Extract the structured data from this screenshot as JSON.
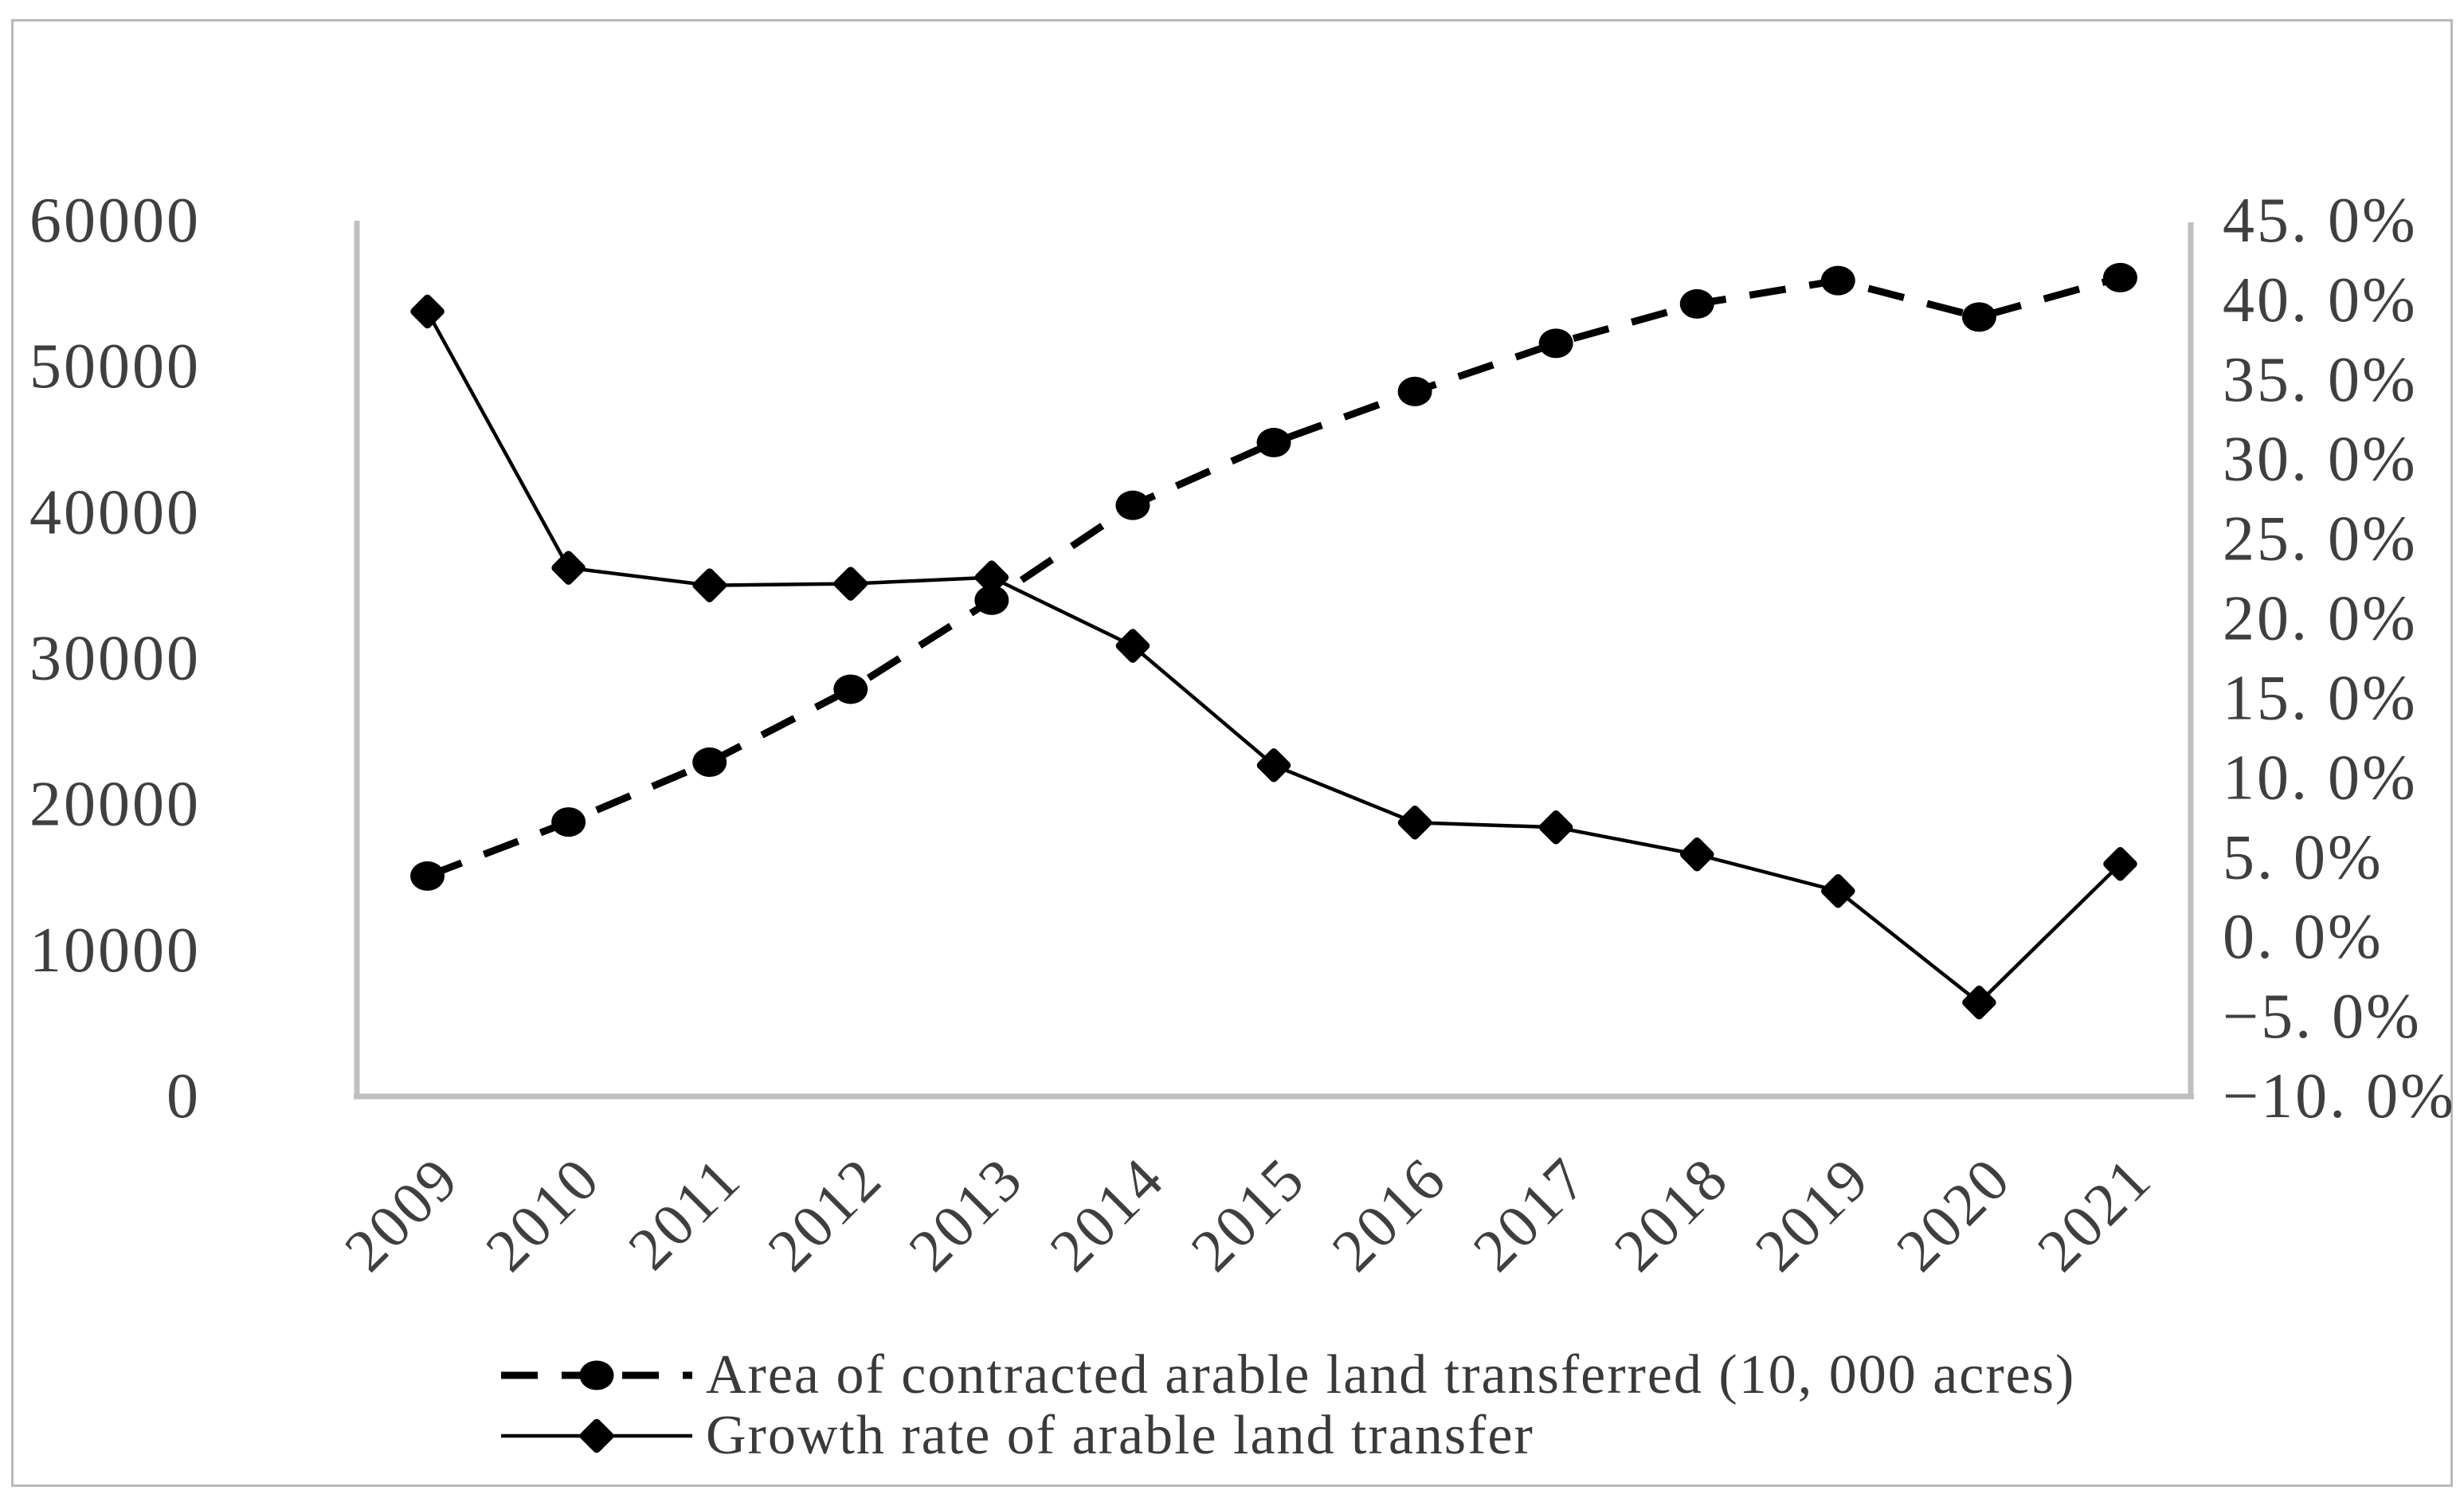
{
  "figure": {
    "background_color": "#ffffff",
    "border_color": "#b9b9b9",
    "series_color": "#000000",
    "axis_line_color": "#bfbfbf",
    "text_color": "#3f3f3f"
  },
  "chart_data": {
    "type": "line",
    "title": "",
    "grid": false,
    "legend_position": "bottom",
    "categories": [
      "2009",
      "2010",
      "2011",
      "2012",
      "2013",
      "2014",
      "2015",
      "2016",
      "2017",
      "2018",
      "2019",
      "2020",
      "2021"
    ],
    "series": [
      {
        "name": "Area of contracted arable land transferred (10, 000 acres)",
        "axis": "left",
        "style": "dashed",
        "marker": "circle",
        "values": [
          15100,
          18800,
          22900,
          27900,
          34000,
          40500,
          44800,
          48300,
          51600,
          54300,
          55900,
          53400,
          56100
        ]
      },
      {
        "name": "Growth rate of arable land transfer",
        "axis": "right",
        "style": "solid",
        "marker": "diamond",
        "values": [
          39.3,
          23.2,
          22.1,
          22.2,
          22.6,
          18.3,
          10.8,
          7.2,
          6.9,
          5.2,
          2.9,
          -4.1,
          4.6
        ]
      }
    ],
    "left_axis": {
      "min": 0,
      "max": 60000,
      "step": 10000,
      "tick_labels": [
        "60000",
        "50000",
        "40000",
        "30000",
        "20000",
        "10000",
        "0"
      ]
    },
    "right_axis": {
      "min": -10,
      "max": 45,
      "step": 5,
      "unit": "%",
      "tick_labels": [
        "45. 0%",
        "40. 0%",
        "35. 0%",
        "30. 0%",
        "25. 0%",
        "20. 0%",
        "15. 0%",
        "10. 0%",
        "5. 0%",
        "0. 0%",
        "−5. 0%",
        "−10. 0%"
      ]
    }
  }
}
